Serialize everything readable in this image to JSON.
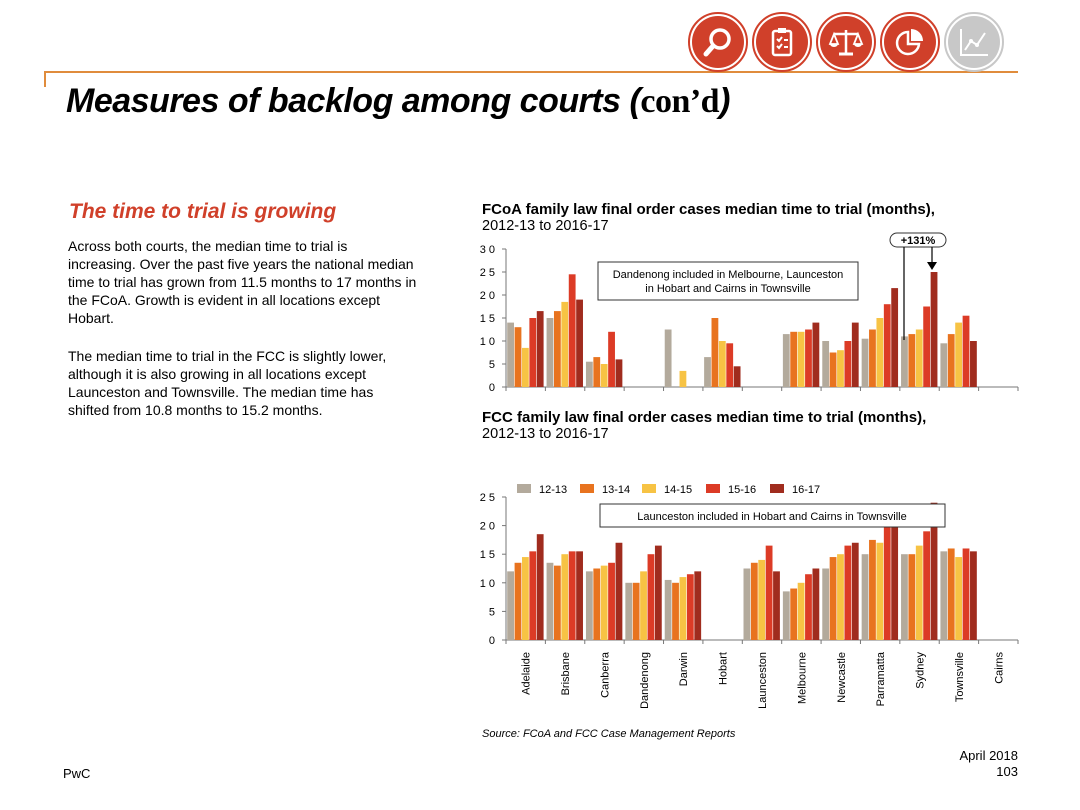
{
  "header": {
    "title_main": "Measures of backlog among courts (",
    "title_tail": "con’d",
    "title_close": ")",
    "icons": [
      "magnifier-icon",
      "clipboard-checklist-icon",
      "scales-icon",
      "pie-chart-icon",
      "line-graph-icon"
    ]
  },
  "left": {
    "subhead": "The time to trial is growing",
    "para1_lines": [
      "Across both courts, the median time to trial is",
      "increasing. Over the past five years the national median",
      "time to trial has grown from 11.5 months to 17 months in",
      "the FCoA. Growth is evident in all locations except",
      "Hobart."
    ],
    "para2_lines": [
      "The median time to trial in the FCC is slightly lower,",
      "although it is also growing in all locations except",
      "Launceston and Townsville. The median time has",
      "shifted from 10.8 months to 15.2 months."
    ]
  },
  "colors": {
    "accent": "#d0402a",
    "rule": "#e08c3c",
    "series": [
      "#b3aa9c",
      "#e8731f",
      "#f7c344",
      "#dc3b26",
      "#a02c1e"
    ]
  },
  "chart_data": [
    {
      "type": "bar",
      "title": "FCoA family law final order cases median time to trial (months),",
      "subtitle": "2012-13 to 2016-17",
      "categories": [
        "Adelaide",
        "Brisbane",
        "Canberra",
        "Dandenong",
        "Darwin",
        "Hobart",
        "Launceston",
        "Melbourne",
        "Newcastle",
        "Parramatta",
        "Sydney",
        "Townsville",
        "Cairns"
      ],
      "yticks": [
        "0",
        "5",
        "1 0",
        "1 5",
        "2 0",
        "2 5",
        "3 0"
      ],
      "ylim": [
        0,
        30
      ],
      "grid": false,
      "note": "Dandenong included in Melbourne, Launceston\nin Hobart and Cairns in Townsville",
      "callout": "+131%",
      "series": [
        {
          "name": "12-13",
          "values": [
            14,
            15,
            5.5,
            0,
            12.5,
            6.5,
            0,
            11.5,
            10,
            10.5,
            11,
            9.5,
            0
          ]
        },
        {
          "name": "13-14",
          "values": [
            13,
            16.5,
            6.5,
            0,
            0,
            15,
            0,
            12,
            7.5,
            12.5,
            11.5,
            11.5,
            0
          ]
        },
        {
          "name": "14-15",
          "values": [
            8.5,
            18.5,
            5,
            0,
            3.5,
            10,
            0,
            12,
            8,
            15,
            12.5,
            14,
            0
          ]
        },
        {
          "name": "15-16",
          "values": [
            15,
            24.5,
            12,
            0,
            0,
            9.5,
            0,
            12.5,
            10,
            18,
            17.5,
            15.5,
            0
          ]
        },
        {
          "name": "16-17",
          "values": [
            16.5,
            19,
            6,
            0,
            0,
            4.5,
            0,
            14,
            14,
            21.5,
            25,
            10,
            0
          ]
        }
      ]
    },
    {
      "type": "bar",
      "title": "FCC family law final order cases median time to trial (months),",
      "subtitle": "2012-13 to 2016-17",
      "categories": [
        "Adelaide",
        "Brisbane",
        "Canberra",
        "Dandenong",
        "Darwin",
        "Hobart",
        "Launceston",
        "Melbourne",
        "Newcastle",
        "Parramatta",
        "Sydney",
        "Townsville",
        "Cairns"
      ],
      "yticks": [
        "0",
        "5",
        "1 0",
        "1 5",
        "2 0",
        "2 5"
      ],
      "ylim": [
        0,
        25
      ],
      "grid": false,
      "legend_position": "top",
      "note": "Launceston included in Hobart and Cairns in Townsville",
      "series": [
        {
          "name": "12-13",
          "values": [
            12,
            13.5,
            12,
            10,
            10.5,
            0,
            12.5,
            8.5,
            12.5,
            15,
            15,
            15.5,
            0
          ]
        },
        {
          "name": "13-14",
          "values": [
            13.5,
            13,
            12.5,
            10,
            10,
            0,
            13.5,
            9,
            14.5,
            17.5,
            15,
            16,
            0
          ]
        },
        {
          "name": "14-15",
          "values": [
            14.5,
            15,
            13,
            12,
            11,
            0,
            14,
            10,
            15,
            17,
            16.5,
            14.5,
            0
          ]
        },
        {
          "name": "15-16",
          "values": [
            15.5,
            15.5,
            13.5,
            15,
            11.5,
            0,
            16.5,
            11.5,
            16.5,
            22,
            19,
            16,
            0
          ]
        },
        {
          "name": "16-17",
          "values": [
            18.5,
            15.5,
            17,
            16.5,
            12,
            0,
            12,
            12.5,
            17,
            22.5,
            24,
            15.5,
            0
          ]
        }
      ]
    }
  ],
  "footer": {
    "source": "Source: FCoA and FCC Case Management Reports",
    "org": "PwC",
    "date": "April 2018",
    "page": "103"
  }
}
